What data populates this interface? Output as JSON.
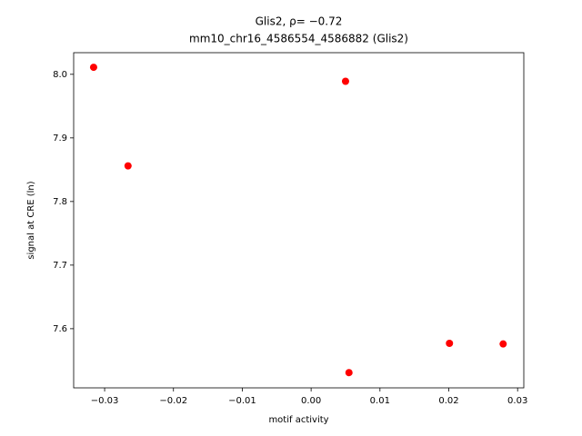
{
  "chart_data": {
    "type": "scatter",
    "title": "Glis2, ρ= −0.72",
    "subtitle": "mm10_chr16_4586554_4586882 (Glis2)",
    "x_label": "motif activity",
    "y_label": "signal at CRE (ln)",
    "color": "#ff0000",
    "x": [
      -0.0316,
      -0.0266,
      0.005,
      0.0055,
      0.0201,
      0.0279
    ],
    "values": [
      8.011,
      7.856,
      7.989,
      7.531,
      7.577,
      7.576
    ],
    "xlim": [
      -0.0345,
      0.0309
    ],
    "ylim": [
      7.507,
      8.034
    ],
    "xticks": [
      {
        "value": -0.03,
        "label": "−0.03"
      },
      {
        "value": -0.02,
        "label": "−0.02"
      },
      {
        "value": -0.01,
        "label": "−0.01"
      },
      {
        "value": 0,
        "label": "0.00"
      },
      {
        "value": 0.01,
        "label": "0.01"
      },
      {
        "value": 0.02,
        "label": "0.02"
      },
      {
        "value": 0.03,
        "label": "0.03"
      }
    ],
    "yticks": [
      7.6,
      7.7,
      7.8,
      7.9,
      {
        "value": 8,
        "label": "8.0"
      }
    ]
  }
}
